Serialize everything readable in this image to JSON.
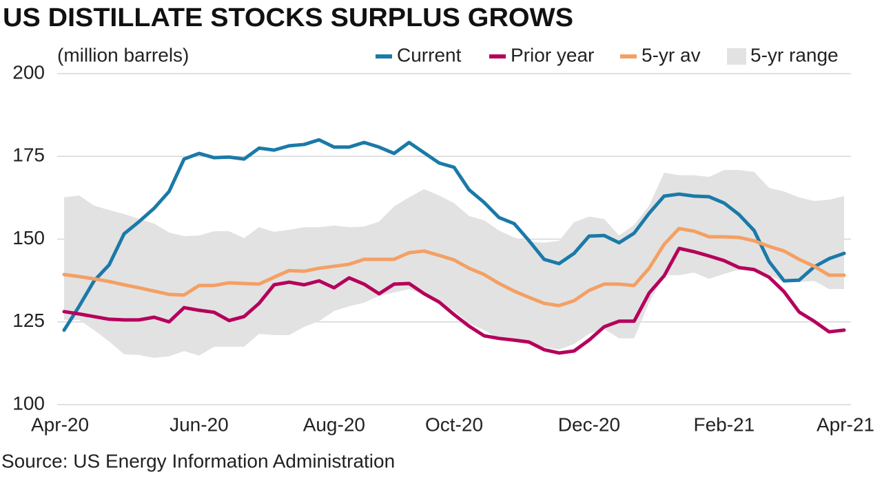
{
  "chart_data": {
    "type": "line",
    "title": "US DISTILLATE STOCKS SURPLUS GROWS",
    "y_label": "(million barrels)",
    "source": "Source: US Energy Information Administration",
    "categories": [
      "Apr-20",
      null,
      null,
      null,
      null,
      null,
      null,
      null,
      null,
      "Jun-20",
      null,
      null,
      null,
      null,
      null,
      null,
      null,
      null,
      "Aug-20",
      null,
      null,
      null,
      null,
      null,
      null,
      null,
      "Oct-20",
      null,
      null,
      null,
      null,
      null,
      null,
      null,
      null,
      "Dec-20",
      null,
      null,
      null,
      null,
      null,
      null,
      null,
      null,
      "Feb-21",
      null,
      null,
      null,
      null,
      null,
      null,
      null,
      "Apr-21"
    ],
    "ylim": [
      100,
      200
    ],
    "yticks": [
      100,
      125,
      150,
      175,
      200
    ],
    "grid": true,
    "legend": "top-right",
    "series": [
      {
        "name": "Current",
        "color": "#1a7aa8",
        "values": [
          122.5,
          129.7,
          137.4,
          142.2,
          151.6,
          155.3,
          159.3,
          164.4,
          174.2,
          175.9,
          174.6,
          174.8,
          174.2,
          177.5,
          176.9,
          178.2,
          178.6,
          180.0,
          177.8,
          177.8,
          179.2,
          177.8,
          175.9,
          179.2,
          176.1,
          173.0,
          171.7,
          164.9,
          161.1,
          156.5,
          154.7,
          149.5,
          143.9,
          142.6,
          145.7,
          150.9,
          151.1,
          148.9,
          151.8,
          157.8,
          163.0,
          163.6,
          163.0,
          162.8,
          160.9,
          157.4,
          152.6,
          143.2,
          137.4,
          137.6,
          141.6,
          144.1,
          145.7
        ]
      },
      {
        "name": "Prior year",
        "color": "#b5005b",
        "values": [
          128.1,
          127.4,
          126.6,
          125.8,
          125.6,
          125.6,
          126.4,
          125.0,
          129.3,
          128.5,
          127.9,
          125.4,
          126.6,
          130.6,
          136.2,
          137.0,
          136.2,
          137.4,
          135.3,
          138.3,
          136.4,
          133.5,
          136.4,
          136.6,
          133.5,
          131.0,
          127.2,
          123.7,
          120.8,
          120.0,
          119.5,
          118.9,
          116.6,
          115.6,
          116.2,
          119.5,
          123.5,
          125.2,
          125.2,
          133.7,
          138.9,
          147.2,
          146.2,
          144.9,
          143.5,
          141.4,
          140.8,
          138.5,
          134.1,
          128.0,
          125.2,
          122.0,
          122.5
        ]
      },
      {
        "name": "5-yr av",
        "color": "#f4a064",
        "values": [
          139.3,
          138.7,
          138.0,
          137.2,
          136.2,
          135.3,
          134.3,
          133.3,
          133.1,
          136.0,
          136.0,
          136.8,
          136.6,
          136.4,
          138.5,
          140.5,
          140.3,
          141.2,
          141.8,
          142.4,
          143.9,
          143.9,
          143.9,
          145.9,
          146.4,
          145.1,
          143.7,
          141.2,
          139.3,
          136.6,
          134.3,
          132.4,
          130.6,
          129.9,
          131.4,
          134.5,
          136.4,
          136.4,
          136.0,
          141.2,
          148.4,
          153.2,
          152.4,
          150.7,
          150.7,
          150.5,
          149.5,
          147.8,
          146.4,
          143.9,
          141.8,
          139.1,
          139.1
        ]
      },
      {
        "name": "5-yr range",
        "color": "#e2e2e2",
        "high": [
          162.6,
          163.2,
          160.1,
          158.8,
          157.6,
          156.1,
          154.7,
          152.0,
          150.9,
          151.1,
          152.4,
          152.4,
          150.3,
          153.6,
          152.2,
          152.8,
          153.6,
          153.6,
          154.1,
          153.6,
          153.8,
          155.3,
          159.9,
          162.6,
          165.1,
          163.2,
          160.9,
          157.0,
          155.7,
          152.6,
          150.5,
          149.3,
          148.9,
          149.5,
          155.1,
          156.8,
          156.1,
          151.1,
          154.3,
          160.1,
          170.1,
          169.3,
          169.3,
          168.8,
          170.9,
          170.9,
          170.3,
          165.5,
          164.4,
          162.6,
          161.5,
          161.9,
          163.0
        ],
        "low": [
          125.6,
          125.6,
          122.5,
          119.1,
          115.2,
          115.0,
          114.1,
          114.6,
          116.2,
          114.8,
          117.5,
          117.5,
          117.5,
          121.4,
          121.0,
          121.0,
          123.5,
          125.2,
          128.3,
          129.7,
          130.8,
          132.8,
          133.9,
          134.9,
          133.3,
          130.8,
          128.3,
          124.5,
          122.5,
          119.8,
          119.3,
          118.9,
          117.3,
          116.6,
          118.3,
          121.4,
          122.9,
          120.0,
          120.0,
          130.8,
          139.1,
          139.1,
          139.9,
          138.0,
          139.5,
          140.8,
          140.8,
          139.1,
          137.0,
          137.0,
          137.4,
          134.9,
          134.9
        ]
      }
    ]
  }
}
